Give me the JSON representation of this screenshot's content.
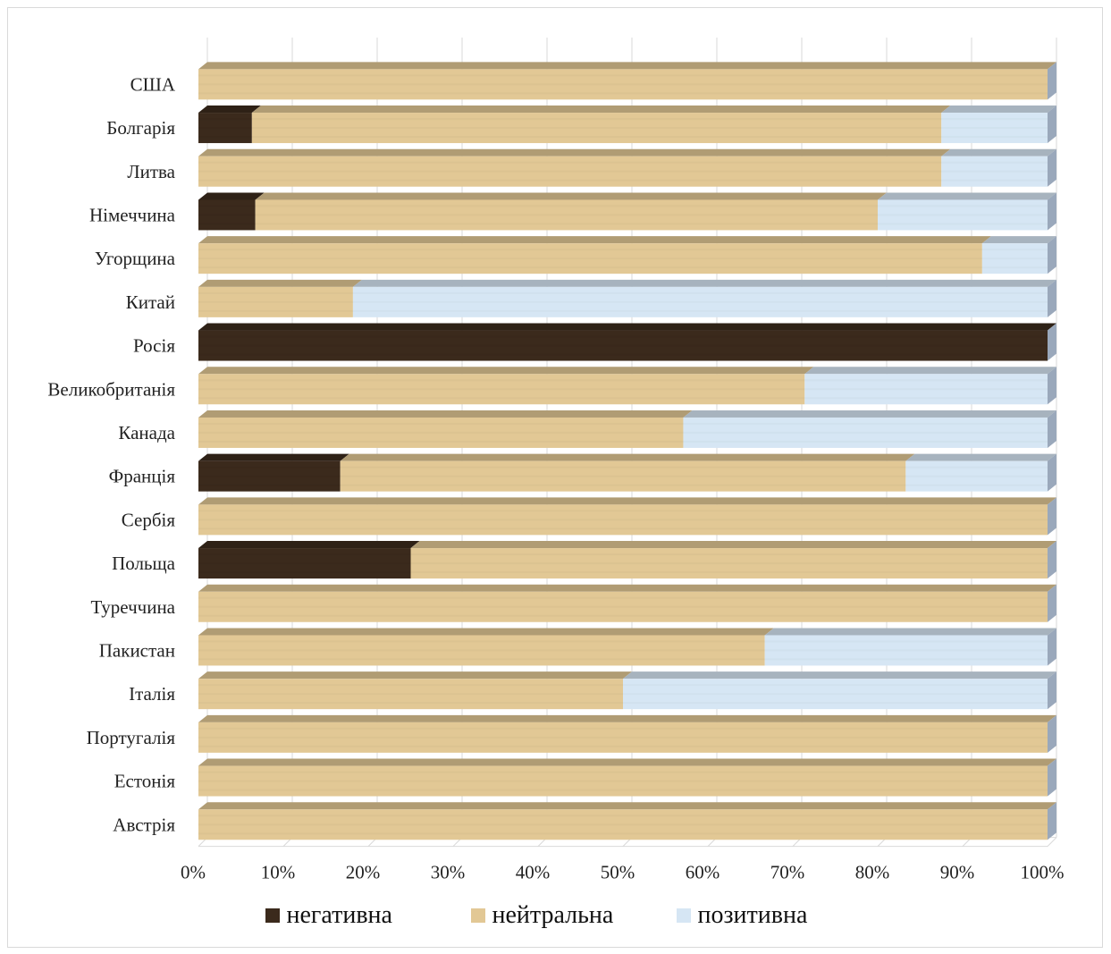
{
  "chart_data": {
    "type": "bar",
    "orientation": "horizontal",
    "stacked": "percent",
    "categories": [
      "США",
      "Болгарія",
      "Литва",
      "Німеччина",
      "Угорщина",
      "Китай",
      "Росія",
      "Великобританія",
      "Канада",
      "Франція",
      "Сербія",
      "Польща",
      "Туреччина",
      "Пакистан",
      "Італія",
      "Португалія",
      "Естонія",
      "Австрія"
    ],
    "series": [
      {
        "name": "негативна",
        "color": "#3b2a1c",
        "values": [
          0,
          6.3,
          0,
          6.7,
          0,
          0,
          100,
          0,
          0,
          16.7,
          0,
          25,
          0,
          0,
          0,
          0,
          0,
          0
        ]
      },
      {
        "name": "нейтральна",
        "color": "#e2c895",
        "values": [
          100,
          81.2,
          87.5,
          73.3,
          92.3,
          18.2,
          0,
          71.4,
          57.1,
          66.6,
          100,
          75,
          100,
          66.7,
          50,
          100,
          100,
          100
        ]
      },
      {
        "name": "позитивна",
        "color": "#d6e6f4",
        "values": [
          0,
          12.5,
          12.5,
          20,
          7.7,
          81.8,
          0,
          28.6,
          42.9,
          16.7,
          0,
          0,
          0,
          33.3,
          50,
          0,
          0,
          0
        ]
      }
    ],
    "x_ticks": [
      "0%",
      "10%",
      "20%",
      "30%",
      "40%",
      "50%",
      "60%",
      "70%",
      "80%",
      "90%",
      "100%"
    ],
    "xlim": [
      0,
      100
    ],
    "grid": "vertical",
    "legend_position": "bottom"
  }
}
